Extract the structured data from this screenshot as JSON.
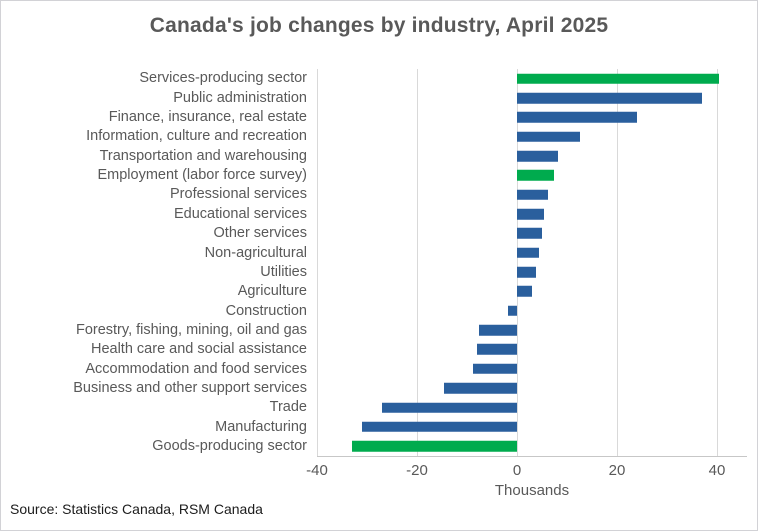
{
  "header": {
    "title": "Canada's job changes by industry, April 2025"
  },
  "footer": {
    "source": "Source: Statistics Canada, RSM Canada"
  },
  "colors": {
    "bar_blue": "#2A5F9D",
    "bar_green": "#00AB4E",
    "text_gray": "#595959",
    "gridline": "#D9D9D9"
  },
  "chart_data": {
    "type": "bar",
    "orientation": "horizontal",
    "title": "Canada's job changes by industry, April 2025",
    "xlabel": "Thousands",
    "ylabel": "",
    "xlim": [
      -40,
      46
    ],
    "xticks": [
      -40,
      -20,
      0,
      20,
      40
    ],
    "grid": "vertical",
    "legend": "none",
    "categories": [
      "Services-producing sector",
      "Public administration",
      "Finance, insurance, real estate",
      "Information, culture and recreation",
      "Transportation and warehousing",
      "Employment (labor force survey)",
      "Professional services",
      "Educational services",
      "Other services",
      "Non-agricultural",
      "Utilities",
      "Agriculture",
      "Construction",
      "Forestry, fishing, mining, oil and gas",
      "Health care and social assistance",
      "Accommodation and food services",
      "Business and other support services",
      "Trade",
      "Manufacturing",
      "Goods-producing sector"
    ],
    "values": [
      40.4,
      37.0,
      24.0,
      12.6,
      8.1,
      7.4,
      6.1,
      5.3,
      4.9,
      4.4,
      3.8,
      3.0,
      -1.9,
      -7.7,
      -8.0,
      -8.8,
      -14.7,
      -27.0,
      -31.0,
      -33.0
    ],
    "colors": [
      "#00AB4E",
      "#2A5F9D",
      "#2A5F9D",
      "#2A5F9D",
      "#2A5F9D",
      "#00AB4E",
      "#2A5F9D",
      "#2A5F9D",
      "#2A5F9D",
      "#2A5F9D",
      "#2A5F9D",
      "#2A5F9D",
      "#2A5F9D",
      "#2A5F9D",
      "#2A5F9D",
      "#2A5F9D",
      "#2A5F9D",
      "#2A5F9D",
      "#2A5F9D",
      "#00AB4E"
    ]
  }
}
